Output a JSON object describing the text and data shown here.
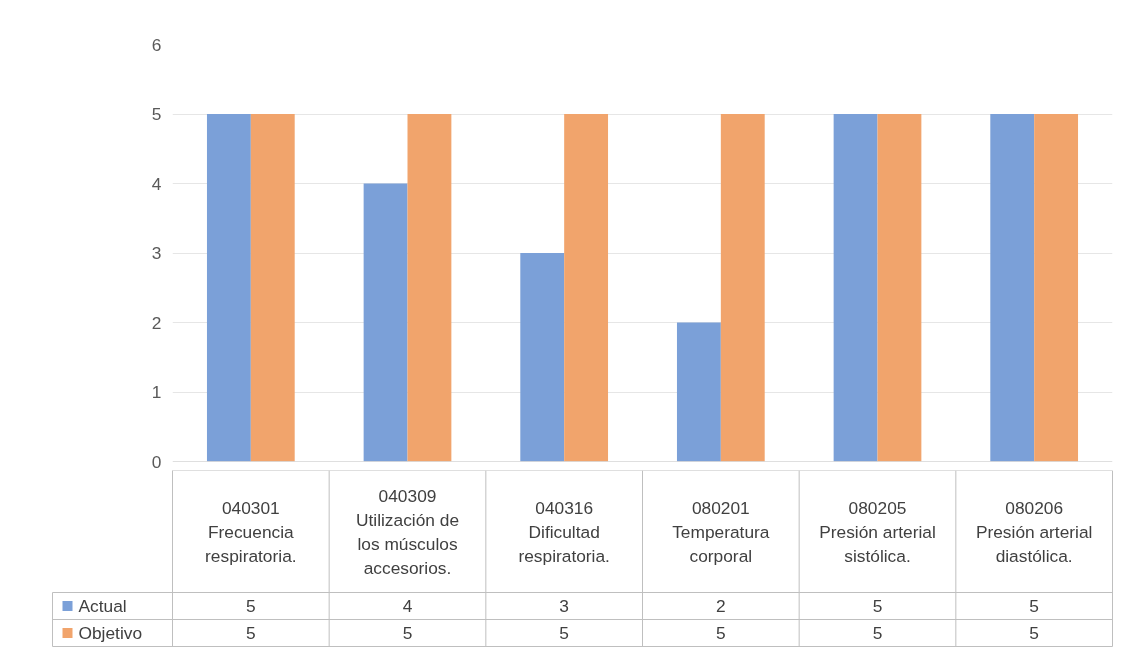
{
  "chart_data": {
    "type": "bar",
    "categories": [
      "040301\nFrecuencia\nrespiratoria.",
      "040309\nUtilización de\nlos músculos\naccesorios.",
      "040316\nDificultad\nrespiratoria.",
      "080201\nTemperatura\ncorporal",
      "080205\nPresión arterial\nsistólica.",
      "080206\nPresión arterial\ndiastólica."
    ],
    "series": [
      {
        "name": "Actual",
        "color": "#7ba0d8",
        "values": [
          5,
          4,
          3,
          2,
          5,
          5
        ]
      },
      {
        "name": "Objetivo",
        "color": "#f1a46c",
        "values": [
          5,
          5,
          5,
          5,
          5,
          5
        ]
      }
    ],
    "ylim": [
      0,
      6
    ],
    "yticks": [
      0,
      1,
      2,
      3,
      4,
      5,
      6
    ],
    "grid": "y",
    "legend": "bottom",
    "data_labels": true
  }
}
